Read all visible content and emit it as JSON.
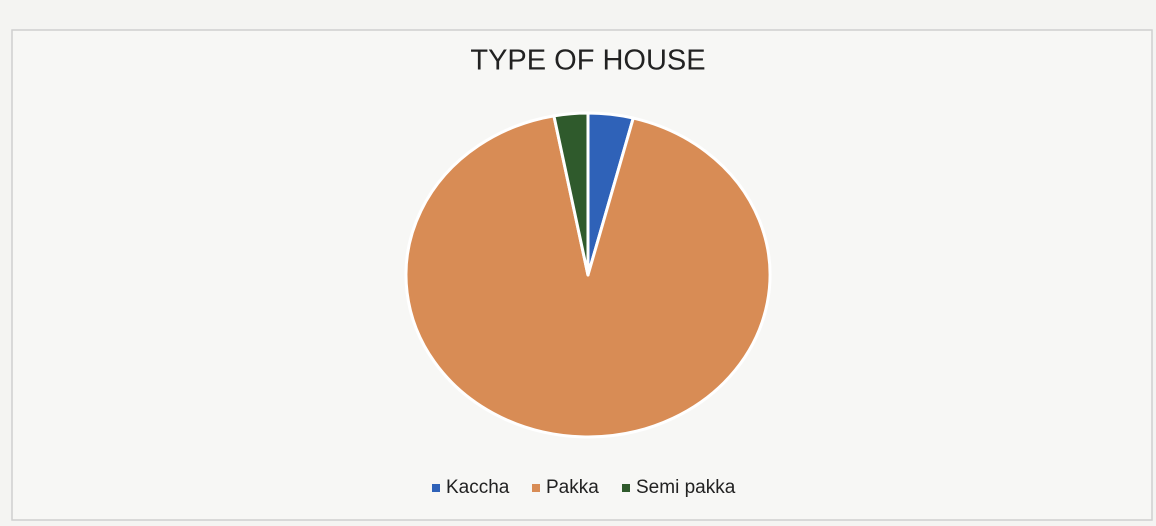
{
  "chart_data": {
    "type": "pie",
    "title": "TYPE OF HOUSE",
    "categories": [
      "Kaccha",
      "Pakka",
      "Semi pakka"
    ],
    "values": [
      4,
      93,
      3
    ],
    "colors": [
      "#2f62b8",
      "#d88c55",
      "#2f5a2c"
    ],
    "legend": "bottom"
  }
}
